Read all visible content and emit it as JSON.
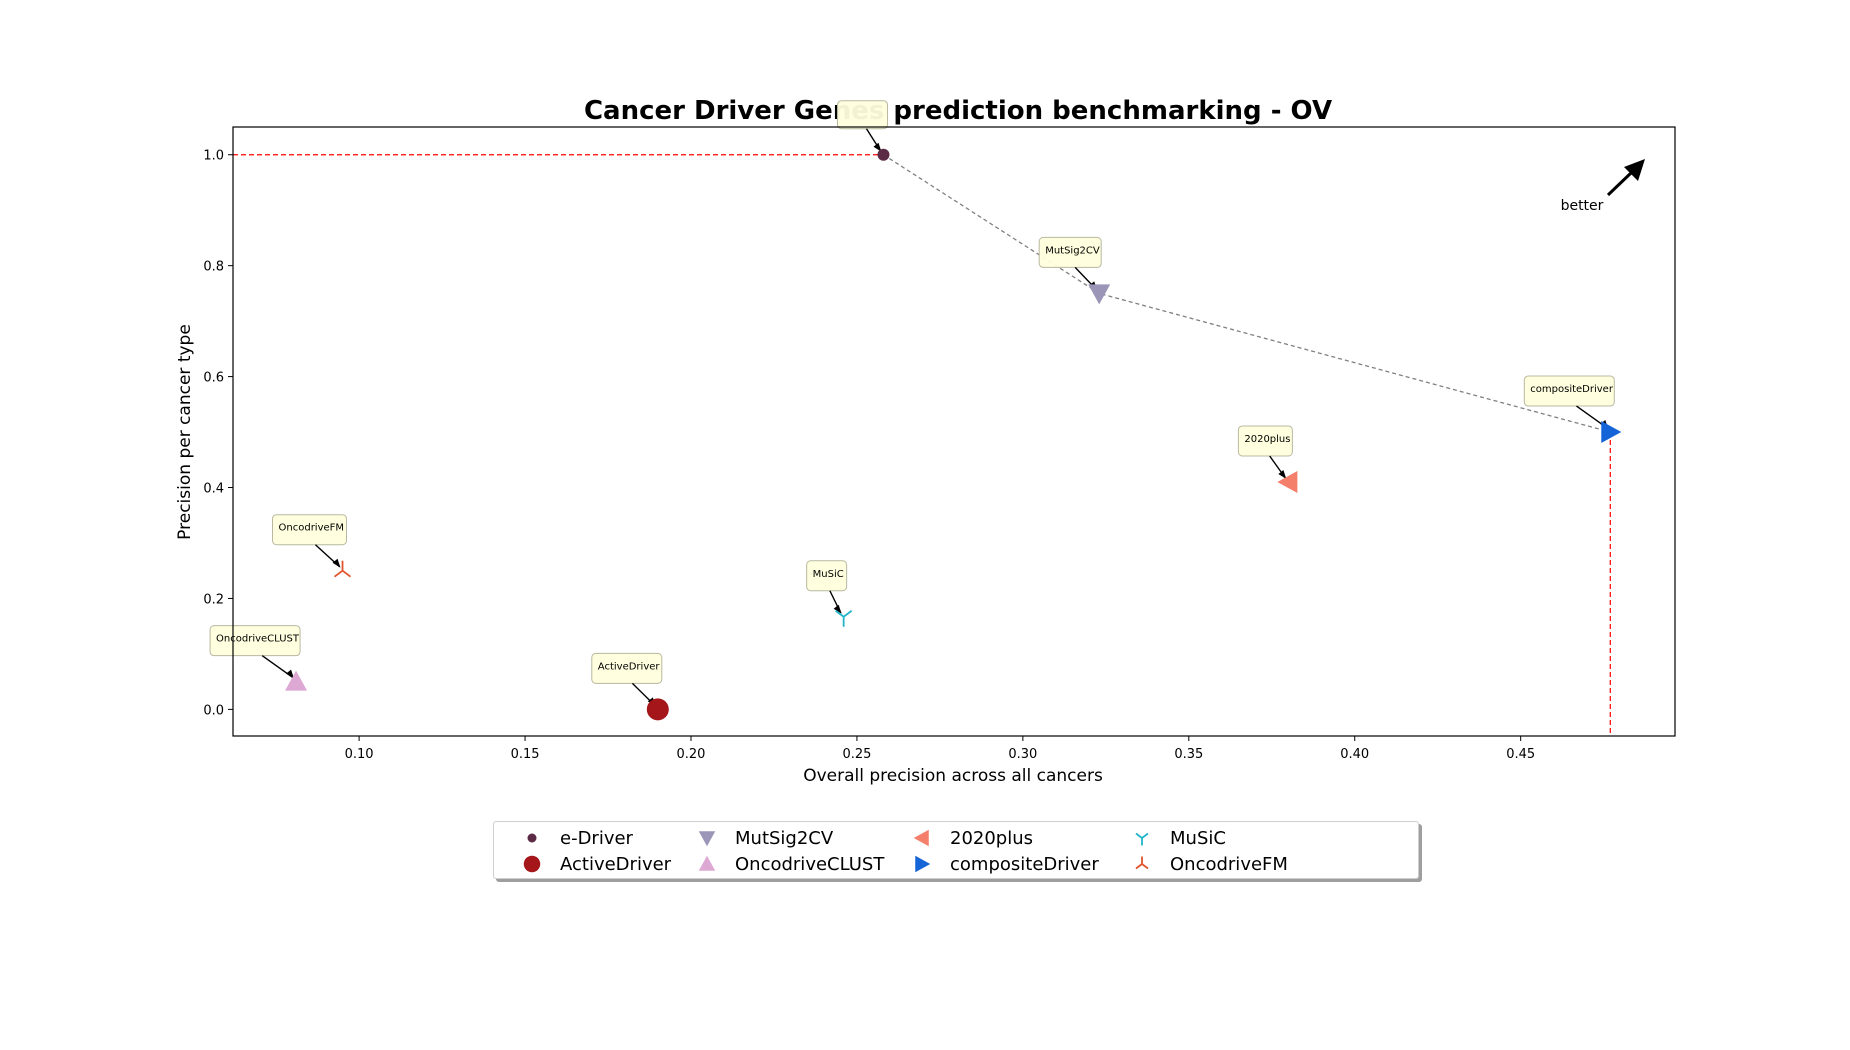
{
  "chart_data": {
    "type": "scatter",
    "title": "Cancer Driver Genes prediction benchmarking - OV",
    "xlabel": "Overall precision across all cancers",
    "ylabel": "Precision per cancer type",
    "xlim": [
      0.062,
      0.4965
    ],
    "ylim": [
      -0.048,
      1.05
    ],
    "xticks": [
      "0.10",
      "0.15",
      "0.20",
      "0.25",
      "0.30",
      "0.35",
      "0.40",
      "0.45"
    ],
    "yticks": [
      "0.0",
      "0.2",
      "0.4",
      "0.6",
      "0.8",
      "1.0"
    ],
    "grid": false,
    "legend_position": "bottom-center",
    "series": [
      {
        "name": "e-Driver",
        "x": 0.258,
        "y": 1.0,
        "marker": "circle-small",
        "color": "#5b2a45",
        "label": ""
      },
      {
        "name": "ActiveDriver",
        "x": 0.19,
        "y": 0.0,
        "marker": "circle",
        "color": "#a4161a",
        "label": "ActiveDriver"
      },
      {
        "name": "MutSig2CV",
        "x": 0.323,
        "y": 0.75,
        "marker": "triangle-down",
        "color": "#9b96b8",
        "label": "MutSig2CV"
      },
      {
        "name": "OncodriveCLUST",
        "x": 0.081,
        "y": 0.05,
        "marker": "triangle-up",
        "color": "#dda8d4",
        "label": "OncodriveCLUST"
      },
      {
        "name": "2020plus",
        "x": 0.38,
        "y": 0.41,
        "marker": "triangle-left",
        "color": "#f47f6b",
        "label": "2020plus"
      },
      {
        "name": "compositeDriver",
        "x": 0.477,
        "y": 0.5,
        "marker": "triangle-right",
        "color": "#1565d8",
        "label": "compositeDriver"
      },
      {
        "name": "MuSiC",
        "x": 0.246,
        "y": 0.167,
        "marker": "tri-down",
        "color": "#22b5c9",
        "label": "MuSiC"
      },
      {
        "name": "OncodriveFM",
        "x": 0.095,
        "y": 0.25,
        "marker": "tri-up",
        "color": "#e2542c",
        "label": "OncodriveFM"
      }
    ],
    "pareto_front": {
      "x": [
        0.258,
        0.323,
        0.477
      ],
      "y": [
        1.0,
        0.75,
        0.5
      ],
      "color": "#808080"
    },
    "reference_lines": {
      "horizontal_y": 1.0,
      "vertical_x": 0.477,
      "color": "#ff0000"
    },
    "annotation": {
      "text": "better"
    }
  }
}
